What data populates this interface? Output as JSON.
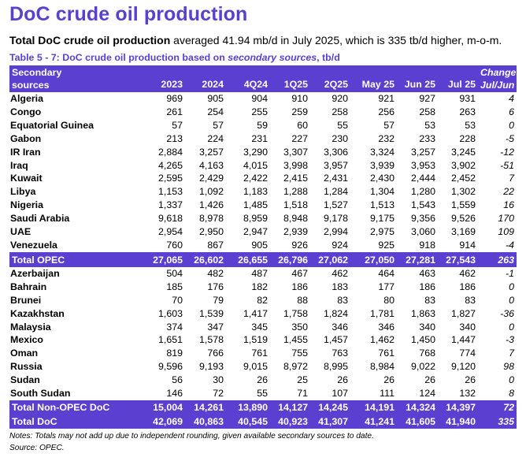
{
  "title": "DoC crude oil production",
  "subtitle": {
    "bold": "Total DoC crude oil production",
    "rest": " averaged 41.94 mb/d in July 2025, which is 335 tb/d higher, m-o-m."
  },
  "caption": {
    "prefix": "Table 5 - 7: DoC crude oil production based on ",
    "italic": "secondary sources",
    "suffix": ", tb/d"
  },
  "header": {
    "label_line1": "Secondary",
    "label_line2": "sources",
    "columns": [
      "2023",
      "2024",
      "4Q24",
      "1Q25",
      "2Q25",
      "May 25",
      "Jun 25",
      "Jul 25"
    ],
    "change_line1": "Change",
    "change_line2": "Jul/Jun"
  },
  "opec_rows": [
    {
      "name": "Algeria",
      "values": [
        "969",
        "905",
        "904",
        "910",
        "920",
        "921",
        "927",
        "931"
      ],
      "change": "4"
    },
    {
      "name": "Congo",
      "values": [
        "261",
        "254",
        "255",
        "259",
        "258",
        "256",
        "258",
        "263"
      ],
      "change": "6"
    },
    {
      "name": "Equatorial Guinea",
      "values": [
        "57",
        "57",
        "59",
        "60",
        "55",
        "57",
        "53",
        "53"
      ],
      "change": "0"
    },
    {
      "name": "Gabon",
      "values": [
        "213",
        "224",
        "231",
        "227",
        "230",
        "232",
        "233",
        "228"
      ],
      "change": "-5"
    },
    {
      "name": "IR Iran",
      "values": [
        "2,884",
        "3,257",
        "3,290",
        "3,307",
        "3,306",
        "3,324",
        "3,257",
        "3,245"
      ],
      "change": "-12"
    },
    {
      "name": "Iraq",
      "values": [
        "4,265",
        "4,163",
        "4,015",
        "3,998",
        "3,957",
        "3,939",
        "3,953",
        "3,902"
      ],
      "change": "-51"
    },
    {
      "name": "Kuwait",
      "values": [
        "2,595",
        "2,429",
        "2,422",
        "2,415",
        "2,431",
        "2,430",
        "2,444",
        "2,452"
      ],
      "change": "7"
    },
    {
      "name": "Libya",
      "values": [
        "1,153",
        "1,092",
        "1,183",
        "1,288",
        "1,284",
        "1,304",
        "1,280",
        "1,302"
      ],
      "change": "22"
    },
    {
      "name": "Nigeria",
      "values": [
        "1,337",
        "1,426",
        "1,485",
        "1,518",
        "1,527",
        "1,513",
        "1,543",
        "1,559"
      ],
      "change": "16"
    },
    {
      "name": "Saudi Arabia",
      "values": [
        "9,618",
        "8,978",
        "8,959",
        "8,948",
        "9,178",
        "9,175",
        "9,356",
        "9,526"
      ],
      "change": "170"
    },
    {
      "name": "UAE",
      "values": [
        "2,954",
        "2,950",
        "2,947",
        "2,939",
        "2,994",
        "2,975",
        "3,060",
        "3,169"
      ],
      "change": "109"
    },
    {
      "name": "Venezuela",
      "values": [
        "760",
        "867",
        "905",
        "926",
        "924",
        "925",
        "918",
        "914"
      ],
      "change": "-4"
    }
  ],
  "total_opec": {
    "name": "Total  OPEC",
    "values": [
      "27,065",
      "26,602",
      "26,655",
      "26,796",
      "27,062",
      "27,050",
      "27,281",
      "27,543"
    ],
    "change": "263"
  },
  "nonopec_rows": [
    {
      "name": "Azerbaijan",
      "values": [
        "504",
        "482",
        "487",
        "467",
        "462",
        "464",
        "463",
        "462"
      ],
      "change": "-1"
    },
    {
      "name": "Bahrain",
      "values": [
        "185",
        "176",
        "182",
        "186",
        "183",
        "177",
        "186",
        "186"
      ],
      "change": "0"
    },
    {
      "name": "Brunei",
      "values": [
        "70",
        "79",
        "82",
        "88",
        "83",
        "80",
        "83",
        "83"
      ],
      "change": "0"
    },
    {
      "name": "Kazakhstan",
      "values": [
        "1,603",
        "1,539",
        "1,417",
        "1,758",
        "1,824",
        "1,781",
        "1,863",
        "1,827"
      ],
      "change": "-36"
    },
    {
      "name": "Malaysia",
      "values": [
        "374",
        "347",
        "345",
        "350",
        "346",
        "346",
        "340",
        "340"
      ],
      "change": "0"
    },
    {
      "name": "Mexico",
      "values": [
        "1,651",
        "1,578",
        "1,519",
        "1,455",
        "1,457",
        "1,462",
        "1,450",
        "1,447"
      ],
      "change": "-3"
    },
    {
      "name": "Oman",
      "values": [
        "819",
        "766",
        "761",
        "755",
        "763",
        "761",
        "768",
        "774"
      ],
      "change": "7"
    },
    {
      "name": "Russia",
      "values": [
        "9,596",
        "9,193",
        "9,015",
        "8,972",
        "8,995",
        "8,984",
        "9,022",
        "9,120"
      ],
      "change": "98"
    },
    {
      "name": "Sudan",
      "values": [
        "56",
        "30",
        "26",
        "25",
        "26",
        "26",
        "26",
        "26"
      ],
      "change": "0"
    },
    {
      "name": "South Sudan",
      "values": [
        "146",
        "72",
        "55",
        "71",
        "107",
        "111",
        "124",
        "132"
      ],
      "change": "8"
    }
  ],
  "total_nonopec": {
    "name": "Total Non-OPEC DoC",
    "values": [
      "15,004",
      "14,261",
      "13,890",
      "14,127",
      "14,245",
      "14,191",
      "14,324",
      "14,397"
    ],
    "change": "72"
  },
  "total_doc": {
    "name": "Total DoC",
    "values": [
      "42,069",
      "40,863",
      "40,545",
      "40,923",
      "41,307",
      "41,241",
      "41,605",
      "41,940"
    ],
    "change": "335"
  },
  "notes": "Notes: Totals may not add up due to independent rounding, given available secondary sources to date.",
  "source": "Source: OPEC.",
  "colors": {
    "accent": "#5b3fd0"
  }
}
